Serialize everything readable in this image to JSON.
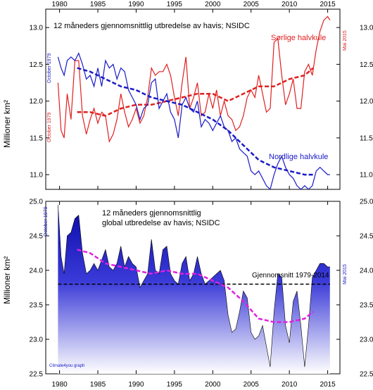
{
  "chart_data": [
    {
      "type": "line",
      "title": "12 måneders gjennomsnittlig utbredelse av havis; NSIDC",
      "ylabel": "Millioner km²",
      "xlim": [
        1978.2,
        2016.6
      ],
      "ylim": [
        10.8,
        13.25
      ],
      "x_ticks": [
        "1980",
        "1985",
        "1990",
        "1995",
        "2000",
        "2005",
        "2010",
        "2015"
      ],
      "y_ticks": [
        "11.0",
        "11.5",
        "12.0",
        "12.5",
        "13.0"
      ],
      "left_annotation": "October 1979",
      "left_annotation_2": "October 1979",
      "right_annotation": "Mai 2015",
      "colors": {
        "south": "#e02020",
        "north": "#1a1ac8"
      },
      "series": [
        {
          "name": "Sørlige halvkule",
          "x": [
            1979.8,
            1980.2,
            1980.6,
            1981.0,
            1981.5,
            1982.0,
            1982.5,
            1983.0,
            1983.5,
            1984.0,
            1984.5,
            1985.0,
            1985.5,
            1986.0,
            1986.5,
            1987.0,
            1987.5,
            1988.0,
            1988.5,
            1989.0,
            1989.5,
            1990.0,
            1990.5,
            1991.0,
            1991.5,
            1992.0,
            1992.5,
            1993.0,
            1993.5,
            1994.0,
            1994.5,
            1995.0,
            1995.5,
            1996.0,
            1996.5,
            1997.0,
            1997.5,
            1998.0,
            1998.5,
            1999.0,
            1999.5,
            2000.0,
            2000.5,
            2001.0,
            2001.5,
            2002.0,
            2002.5,
            2003.0,
            2003.5,
            2004.0,
            2004.5,
            2005.0,
            2005.5,
            2006.0,
            2006.5,
            2007.0,
            2007.5,
            2008.0,
            2008.5,
            2009.0,
            2009.5,
            2010.0,
            2010.5,
            2011.0,
            2011.5,
            2012.0,
            2012.5,
            2013.0,
            2013.5,
            2014.0,
            2014.5,
            2015.0,
            2015.3
          ],
          "values": [
            12.25,
            11.6,
            11.5,
            12.1,
            11.75,
            12.55,
            12.55,
            11.8,
            11.55,
            11.75,
            11.9,
            11.7,
            11.85,
            11.8,
            11.45,
            11.55,
            11.75,
            12.1,
            11.85,
            11.65,
            11.75,
            11.9,
            11.7,
            11.8,
            12.05,
            12.45,
            12.35,
            12.4,
            12.4,
            12.5,
            12.35,
            12.05,
            11.8,
            12.25,
            12.6,
            11.9,
            12.05,
            12.25,
            11.8,
            11.85,
            12.1,
            11.9,
            12.15,
            11.8,
            12.0,
            11.8,
            11.75,
            11.6,
            11.65,
            11.8,
            12.05,
            12.15,
            12.05,
            12.35,
            12.1,
            11.85,
            11.9,
            12.8,
            12.85,
            12.35,
            11.95,
            12.1,
            12.3,
            11.9,
            11.9,
            12.4,
            12.5,
            12.35,
            12.7,
            12.95,
            13.1,
            13.15,
            13.1
          ]
        },
        {
          "name": "Sørlige halvkule trend",
          "x": [
            1982.3,
            1984,
            1986,
            1988,
            1990,
            1992,
            1994,
            1996,
            1998,
            2000,
            2002,
            2004,
            2006,
            2008,
            2010,
            2012,
            2013.1
          ],
          "values": [
            11.85,
            11.85,
            11.8,
            11.9,
            11.95,
            11.95,
            12.0,
            12.05,
            12.1,
            12.1,
            12.0,
            12.1,
            12.2,
            12.2,
            12.3,
            12.35,
            12.45
          ]
        },
        {
          "name": "Nordlige halvkule",
          "x": [
            1979.8,
            1980.2,
            1980.6,
            1981.0,
            1981.5,
            1982.0,
            1982.5,
            1983.0,
            1983.5,
            1984.0,
            1984.5,
            1985.0,
            1985.5,
            1986.0,
            1986.5,
            1987.0,
            1987.5,
            1988.0,
            1988.5,
            1989.0,
            1989.5,
            1990.0,
            1990.5,
            1991.0,
            1991.5,
            1992.0,
            1992.5,
            1993.0,
            1993.5,
            1994.0,
            1994.5,
            1995.0,
            1995.5,
            1996.0,
            1996.5,
            1997.0,
            1997.5,
            1998.0,
            1998.5,
            1999.0,
            1999.5,
            2000.0,
            2000.5,
            2001.0,
            2001.5,
            2002.0,
            2002.5,
            2003.0,
            2003.5,
            2004.0,
            2004.5,
            2005.0,
            2005.5,
            2006.0,
            2006.5,
            2007.0,
            2007.5,
            2008.0,
            2008.5,
            2009.0,
            2009.5,
            2010.0,
            2010.5,
            2011.0,
            2011.5,
            2012.0,
            2012.5,
            2013.0,
            2013.5,
            2014.0,
            2014.5,
            2015.0,
            2015.3
          ],
          "values": [
            12.6,
            12.45,
            12.35,
            12.55,
            12.6,
            12.55,
            12.65,
            12.5,
            12.3,
            12.35,
            12.2,
            12.45,
            12.2,
            12.55,
            12.45,
            12.5,
            12.3,
            12.45,
            12.4,
            12.15,
            12.05,
            11.95,
            11.75,
            11.9,
            11.95,
            12.25,
            12.3,
            11.9,
            12.0,
            12.1,
            11.85,
            11.75,
            11.5,
            11.95,
            12.05,
            11.9,
            11.85,
            12.0,
            11.65,
            11.75,
            11.7,
            11.6,
            11.7,
            11.8,
            11.65,
            11.6,
            11.45,
            11.5,
            11.35,
            11.3,
            11.25,
            11.05,
            11.0,
            11.05,
            10.95,
            10.85,
            10.8,
            11.0,
            11.15,
            11.25,
            11.1,
            11.0,
            10.95,
            10.85,
            10.8,
            10.85,
            10.8,
            10.85,
            11.05,
            11.1,
            11.05,
            11.0,
            11.0
          ]
        },
        {
          "name": "Nordlige halvkule trend",
          "x": [
            1982.3,
            1984,
            1986,
            1988,
            1990,
            1992,
            1994,
            1996,
            1998,
            2000,
            2002,
            2004,
            2006,
            2008,
            2010,
            2012,
            2013.1
          ],
          "values": [
            12.45,
            12.4,
            12.3,
            12.2,
            12.15,
            12.05,
            12.0,
            11.95,
            11.85,
            11.75,
            11.6,
            11.4,
            11.2,
            11.1,
            11.05,
            11.0,
            11.0
          ]
        }
      ],
      "series_labels": [
        "Sørlige halvkule",
        "Nordlige halvkule"
      ]
    },
    {
      "type": "area",
      "title": "12 måneders gjennomsnittlig global utbredelse av havis; NSIDC",
      "title_lines": [
        "12 måneders gjennomsnittlig",
        "global utbredelse av havis; NSIDC"
      ],
      "ylabel": "Millioner km²",
      "xlim": [
        1978.2,
        2016.6
      ],
      "ylim": [
        22.5,
        25.0
      ],
      "x_ticks": [
        "1980",
        "1985",
        "1990",
        "1995",
        "2000",
        "2005",
        "2010",
        "2015"
      ],
      "y_ticks": [
        "22.5",
        "23.0",
        "23.5",
        "24.0",
        "24.5",
        "25.0"
      ],
      "left_annotation": "October 1979",
      "right_annotation": "Mai 2015",
      "credit": "Climate4you graph",
      "reference_line": {
        "label": "Gjennomsnitt 1979-2014",
        "value": 23.8
      },
      "colors": {
        "area_top": "#0a0aa8",
        "area_bottom": "#ffffff",
        "highlight": "#8a2bb8",
        "trend": "#e020e0"
      },
      "series": [
        {
          "name": "Global",
          "x": [
            1979.8,
            1980.2,
            1980.6,
            1981.0,
            1981.5,
            1982.0,
            1982.5,
            1983.0,
            1983.5,
            1984.0,
            1984.5,
            1985.0,
            1985.5,
            1986.0,
            1986.5,
            1987.0,
            1987.5,
            1988.0,
            1988.5,
            1989.0,
            1989.5,
            1990.0,
            1990.5,
            1991.0,
            1991.5,
            1992.0,
            1992.5,
            1993.0,
            1993.5,
            1994.0,
            1994.5,
            1995.0,
            1995.5,
            1996.0,
            1996.5,
            1997.0,
            1997.5,
            1998.0,
            1998.5,
            1999.0,
            1999.5,
            2000.0,
            2000.5,
            2001.0,
            2001.5,
            2002.0,
            2002.5,
            2003.0,
            2003.5,
            2004.0,
            2004.5,
            2005.0,
            2005.5,
            2006.0,
            2006.5,
            2007.0,
            2007.5,
            2008.0,
            2008.5,
            2009.0,
            2009.5,
            2010.0,
            2010.5,
            2011.0,
            2011.5,
            2012.0,
            2012.5,
            2013.0,
            2013.5,
            2014.0,
            2014.5,
            2015.0,
            2015.3
          ],
          "values": [
            24.95,
            24.2,
            23.95,
            24.5,
            24.55,
            24.75,
            24.8,
            24.25,
            23.95,
            24.0,
            24.1,
            24.0,
            24.15,
            24.3,
            24.05,
            24.0,
            24.1,
            24.35,
            24.05,
            24.2,
            24.1,
            24.05,
            23.75,
            23.85,
            23.95,
            24.45,
            24.0,
            23.95,
            24.3,
            24.35,
            23.95,
            23.85,
            23.8,
            24.1,
            24.2,
            23.85,
            23.95,
            24.2,
            23.95,
            23.8,
            23.85,
            23.9,
            23.95,
            24.0,
            23.85,
            23.35,
            23.1,
            23.15,
            23.4,
            23.7,
            23.6,
            23.1,
            23.0,
            23.05,
            23.2,
            22.9,
            22.6,
            23.4,
            23.95,
            23.9,
            23.2,
            22.95,
            23.55,
            23.7,
            23.2,
            22.6,
            23.2,
            23.9,
            24.0,
            24.1,
            24.1,
            24.05,
            24.05
          ]
        },
        {
          "name": "Global trend",
          "x": [
            1982.3,
            1984,
            1986,
            1988,
            1990,
            1992,
            1994,
            1996,
            1998,
            2000,
            2002,
            2004,
            2006,
            2008,
            2010,
            2012,
            2013.1
          ],
          "values": [
            24.3,
            24.25,
            24.1,
            24.05,
            24.0,
            23.95,
            24.0,
            23.95,
            23.95,
            23.85,
            23.75,
            23.55,
            23.3,
            23.25,
            23.25,
            23.3,
            23.4
          ]
        }
      ]
    }
  ]
}
